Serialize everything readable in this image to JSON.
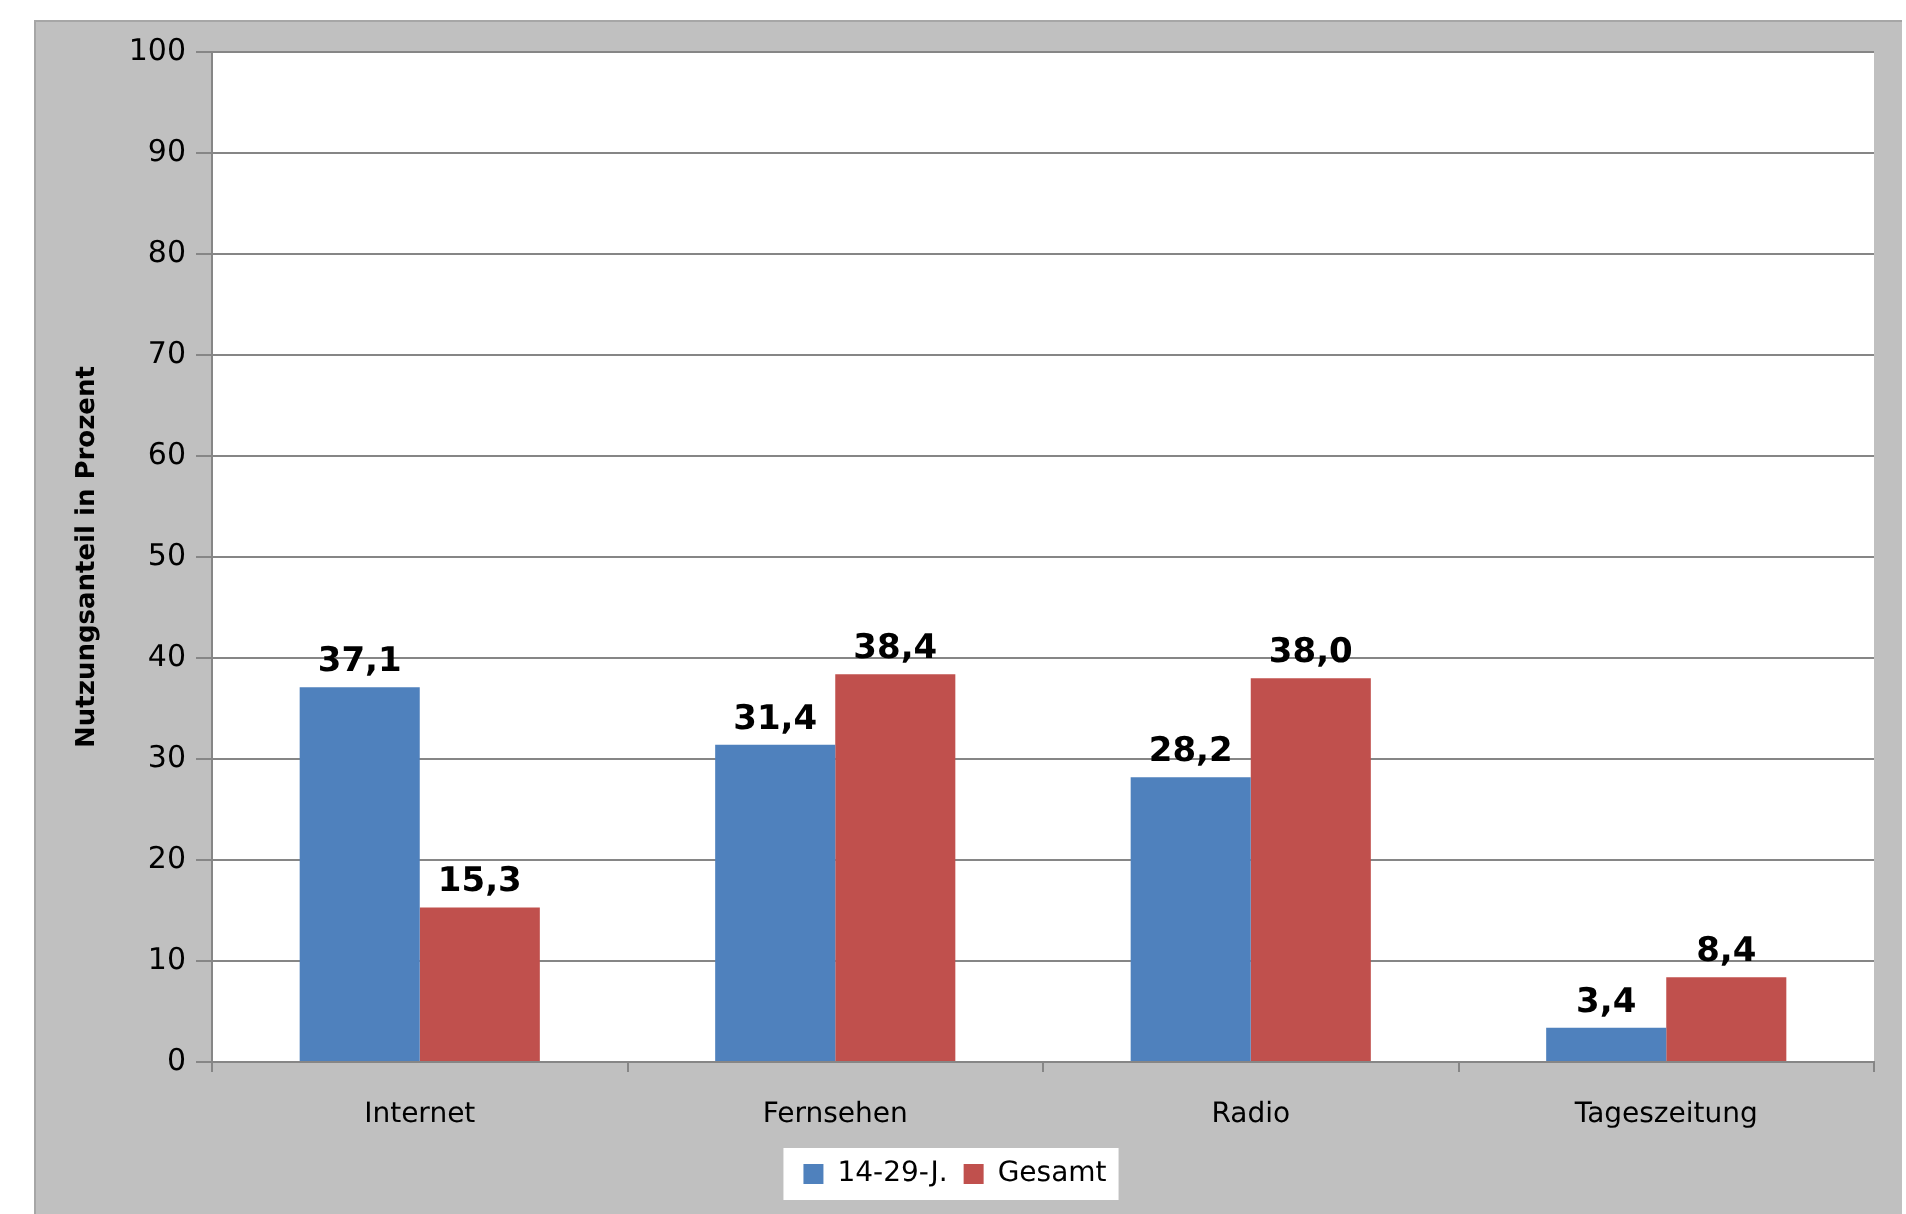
{
  "chart_data": {
    "type": "bar",
    "ylabel": "Nutzungsanteil in Prozent",
    "categories": [
      "Internet",
      "Fernsehen",
      "Radio",
      "Tageszeitung"
    ],
    "series": [
      {
        "name": "14-29-J.",
        "color": "#4f81bd",
        "values": [
          37.1,
          31.4,
          28.2,
          3.4
        ],
        "value_labels": [
          "37,1",
          "31,4",
          "28,2",
          "3,4"
        ]
      },
      {
        "name": "Gesamt",
        "color": "#c0504d",
        "values": [
          15.3,
          38.4,
          38.0,
          8.4
        ],
        "value_labels": [
          "15,3",
          "38,4",
          "38,0",
          "8,4"
        ]
      }
    ],
    "ylim": [
      0,
      100
    ],
    "yticks": [
      0,
      10,
      20,
      30,
      40,
      50,
      60,
      70,
      80,
      90,
      100
    ],
    "grid": "y",
    "legend": "bottom"
  }
}
